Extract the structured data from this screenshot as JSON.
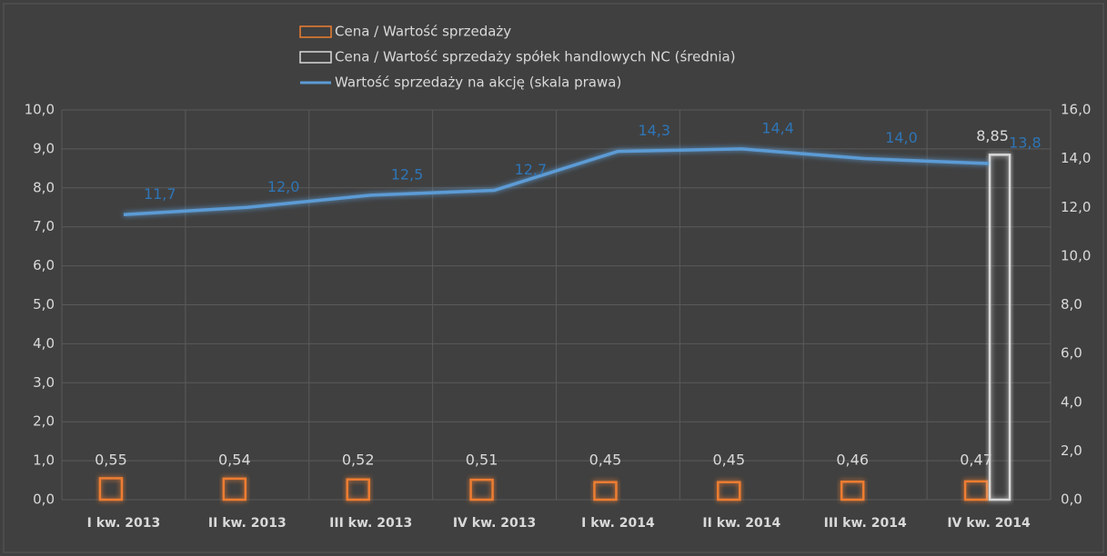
{
  "chart_data": {
    "type": "bar",
    "categories": [
      "I kw. 2013",
      "II kw. 2013",
      "III kw. 2013",
      "IV kw. 2013",
      "I kw. 2014",
      "II kw. 2014",
      "III kw. 2014",
      "IV kw. 2014"
    ],
    "series": [
      {
        "name": "Cena / Wartość sprzedaży",
        "color": "#ed7d31",
        "values": [
          0.55,
          0.54,
          0.52,
          0.51,
          0.45,
          0.45,
          0.46,
          0.47
        ],
        "value_labels": [
          "0,55",
          "0,54",
          "0,52",
          "0,51",
          "0,45",
          "0,45",
          "0,46",
          "0,47"
        ]
      },
      {
        "name": "Cena / Wartość sprzedaży spółek handlowych NC (średnia)",
        "color": "#d9d9d9",
        "values": [
          null,
          null,
          null,
          null,
          null,
          null,
          null,
          8.85
        ],
        "value_labels": [
          null,
          null,
          null,
          null,
          null,
          null,
          null,
          "8,85"
        ]
      },
      {
        "name": "Wartość sprzedaży na akcję (skala prawa)",
        "type": "line",
        "axis": "y2",
        "color": "#5b9bd5",
        "values": [
          11.7,
          12.0,
          12.5,
          12.7,
          14.3,
          14.4,
          14.0,
          13.8
        ],
        "value_labels": [
          "11,7",
          "12,0",
          "12,5",
          "12,7",
          "14,3",
          "14,4",
          "14,0",
          "13,8"
        ]
      }
    ],
    "ylim": [
      0,
      10
    ],
    "yticks": [
      {
        "value": 0,
        "label": "0,0"
      },
      {
        "value": 1,
        "label": "1,0"
      },
      {
        "value": 2,
        "label": "2,0"
      },
      {
        "value": 3,
        "label": "3,0"
      },
      {
        "value": 4,
        "label": "4,0"
      },
      {
        "value": 5,
        "label": "5,0"
      },
      {
        "value": 6,
        "label": "6,0"
      },
      {
        "value": 7,
        "label": "7,0"
      },
      {
        "value": 8,
        "label": "8,0"
      },
      {
        "value": 9,
        "label": "9,0"
      },
      {
        "value": 10,
        "label": "10,0"
      }
    ],
    "y2lim": [
      0,
      16
    ],
    "y2ticks": [
      {
        "value": 0,
        "label": "0,0"
      },
      {
        "value": 2,
        "label": "2,0"
      },
      {
        "value": 4,
        "label": "4,0"
      },
      {
        "value": 6,
        "label": "6,0"
      },
      {
        "value": 8,
        "label": "8,0"
      },
      {
        "value": 10,
        "label": "10,0"
      },
      {
        "value": 12,
        "label": "12,0"
      },
      {
        "value": 14,
        "label": "14,0"
      },
      {
        "value": 16,
        "label": "16,0"
      }
    ],
    "grid": true,
    "legend": "top"
  }
}
